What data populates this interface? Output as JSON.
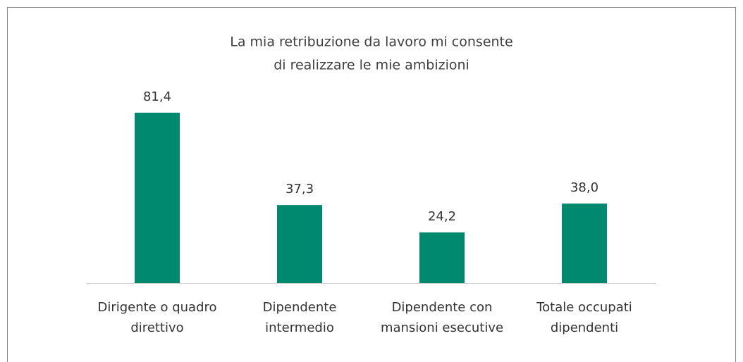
{
  "chart_data": {
    "type": "bar",
    "title": [
      "La mia retribuzione da lavoro mi consente",
      "di realizzare le mie ambizioni"
    ],
    "categories": [
      [
        "Dirigente o quadro",
        "direttivo"
      ],
      [
        "Dipendente",
        "intermedio"
      ],
      [
        "Dipendente con",
        "mansioni esecutive"
      ],
      [
        "Totale occupati",
        "dipendenti"
      ]
    ],
    "values": [
      81.4,
      37.3,
      24.2,
      38.0
    ],
    "value_labels": [
      "81,4",
      "37,3",
      "24,2",
      "38,0"
    ],
    "color": "#00896f"
  }
}
